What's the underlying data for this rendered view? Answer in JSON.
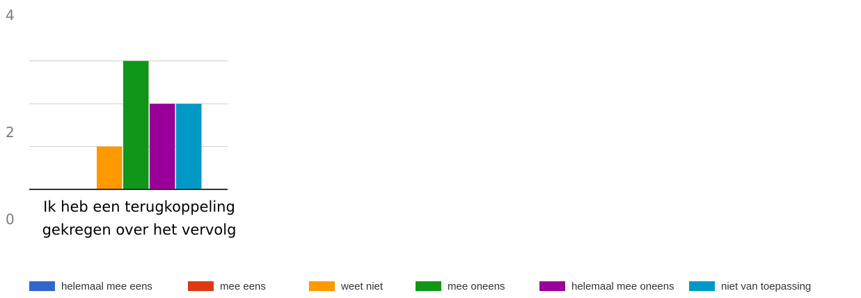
{
  "chart_data": {
    "type": "bar",
    "title": "",
    "xlabel": "",
    "ylabel": "",
    "categories": [
      "Ik heb een terugkoppeling gekregen over het vervolg"
    ],
    "category_lines": [
      "Ik heb een terugkoppeling",
      "gekregen over het vervolg"
    ],
    "series": [
      {
        "name": "helemaal mee eens",
        "color": "#3366cc",
        "values": [
          0
        ]
      },
      {
        "name": "mee eens",
        "color": "#dc3912",
        "values": [
          0
        ]
      },
      {
        "name": "weet niet",
        "color": "#ff9900",
        "values": [
          1
        ]
      },
      {
        "name": "mee oneens",
        "color": "#109618",
        "values": [
          3
        ]
      },
      {
        "name": "helemaal mee oneens",
        "color": "#990099",
        "values": [
          2
        ]
      },
      {
        "name": "niet van toepassing",
        "color": "#0099c6",
        "values": [
          2
        ]
      }
    ],
    "ylim": [
      0,
      3
    ],
    "yticks": [
      "4",
      "2",
      "0"
    ],
    "grid": true,
    "legend_position": "bottom"
  }
}
